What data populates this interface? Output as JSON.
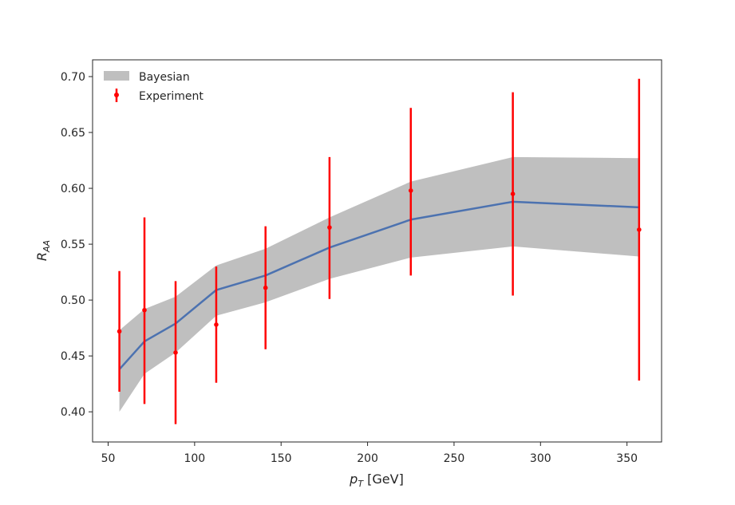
{
  "chart_data": {
    "type": "line",
    "title": "",
    "xlabel": "p_T [GeV]",
    "xlabel_main": "p",
    "xlabel_sub": "T",
    "xlabel_unit": " [GeV]",
    "ylabel": "R_AA",
    "ylabel_main": "R",
    "ylabel_sub": "AA",
    "xlim": [
      41,
      370
    ],
    "ylim": [
      0.373,
      0.715
    ],
    "xticks": [
      50,
      100,
      150,
      200,
      250,
      300,
      350
    ],
    "yticks": [
      0.4,
      0.45,
      0.5,
      0.55,
      0.6,
      0.65,
      0.7
    ],
    "xtick_labels": [
      "50",
      "100",
      "150",
      "200",
      "250",
      "300",
      "350"
    ],
    "ytick_labels": [
      "0.40",
      "0.45",
      "0.50",
      "0.55",
      "0.60",
      "0.65",
      "0.70"
    ],
    "legend_position": "top-left",
    "grid": false,
    "series": [
      {
        "name": "Bayesian",
        "kind": "line_with_band",
        "color": "#4c72b0",
        "band_color": "#bfbfbf",
        "x": [
          56.5,
          71,
          89,
          112.5,
          141,
          178,
          225,
          284,
          357
        ],
        "y": [
          0.438,
          0.463,
          0.479,
          0.509,
          0.522,
          0.547,
          0.572,
          0.588,
          0.583
        ],
        "lower": [
          0.4,
          0.434,
          0.453,
          0.486,
          0.498,
          0.519,
          0.538,
          0.548,
          0.539
        ],
        "upper": [
          0.473,
          0.492,
          0.503,
          0.531,
          0.546,
          0.574,
          0.606,
          0.628,
          0.627
        ]
      },
      {
        "name": "Experiment",
        "kind": "errorbar",
        "color": "#ff0000",
        "x": [
          56.5,
          71,
          89,
          112.5,
          141,
          178,
          225,
          284,
          357
        ],
        "y": [
          0.472,
          0.491,
          0.453,
          0.478,
          0.511,
          0.565,
          0.598,
          0.595,
          0.563
        ],
        "yerr_low": [
          0.054,
          0.084,
          0.064,
          0.052,
          0.055,
          0.064,
          0.076,
          0.091,
          0.135
        ],
        "yerr_high": [
          0.054,
          0.083,
          0.064,
          0.052,
          0.055,
          0.063,
          0.074,
          0.091,
          0.135
        ]
      }
    ],
    "legend": [
      "Bayesian",
      "Experiment"
    ]
  }
}
